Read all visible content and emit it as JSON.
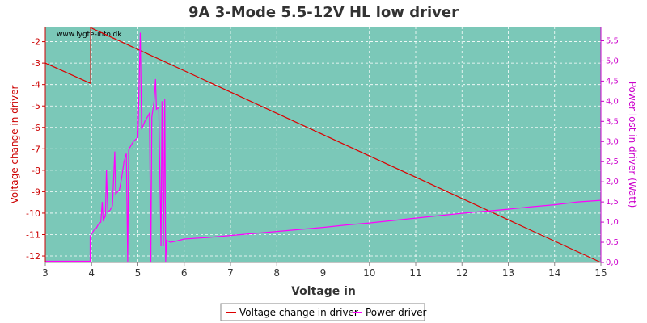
{
  "chart_data": {
    "type": "line",
    "title": "9A 3-Mode 5.5-12V HL low driver",
    "watermark": "www.lygte-info.dk",
    "xlabel": "Voltage in",
    "ylabel_left": "Voltage change in driver",
    "ylabel_right": "Power lost in driver (Watt)",
    "xlim": [
      3,
      15
    ],
    "ylim_left": [
      -12.3,
      -1.3
    ],
    "ylim_right": [
      0.0,
      5.85
    ],
    "x_ticks": [
      3,
      4,
      5,
      6,
      7,
      8,
      9,
      10,
      11,
      12,
      13,
      14,
      15
    ],
    "y_left_ticks": [
      -2,
      -3,
      -4,
      -5,
      -6,
      -7,
      -8,
      -9,
      -10,
      -11,
      -12
    ],
    "y_right_ticks": [
      "0,0",
      "0,5",
      "1,0",
      "1,5",
      "2,0",
      "2,5",
      "3,0",
      "3,5",
      "4,0",
      "4,5",
      "5,0",
      "5,5"
    ],
    "y_right_tick_values": [
      0.0,
      0.5,
      1.0,
      1.5,
      2.0,
      2.5,
      3.0,
      3.5,
      4.0,
      4.5,
      5.0,
      5.5
    ],
    "grid": true,
    "legend_position": "bottom",
    "colors": {
      "plot_bg": "#7bc8b8",
      "voltage_line": "#dd0000",
      "power_line": "#ff00ff",
      "left_axis": "#cc0000",
      "right_axis": "#cc00cc"
    },
    "series": [
      {
        "name": "Voltage change in driver",
        "axis": "left",
        "points": [
          [
            3.0,
            -3.0
          ],
          [
            3.98,
            -3.95
          ],
          [
            3.98,
            -1.35
          ],
          [
            15.0,
            -12.3
          ]
        ]
      },
      {
        "name": "Power driver",
        "axis": "right",
        "points": [
          [
            3.0,
            0.03
          ],
          [
            3.97,
            0.03
          ],
          [
            3.97,
            0.65
          ],
          [
            4.05,
            0.8
          ],
          [
            4.1,
            0.85
          ],
          [
            4.15,
            0.95
          ],
          [
            4.2,
            1.0
          ],
          [
            4.23,
            1.5
          ],
          [
            4.25,
            1.05
          ],
          [
            4.3,
            1.15
          ],
          [
            4.32,
            2.3
          ],
          [
            4.35,
            1.25
          ],
          [
            4.4,
            1.3
          ],
          [
            4.45,
            1.4
          ],
          [
            4.5,
            2.75
          ],
          [
            4.52,
            1.7
          ],
          [
            4.6,
            1.8
          ],
          [
            4.65,
            2.1
          ],
          [
            4.7,
            2.5
          ],
          [
            4.75,
            2.7
          ],
          [
            4.78,
            0.0
          ],
          [
            4.8,
            2.8
          ],
          [
            4.9,
            3.0
          ],
          [
            4.95,
            3.05
          ],
          [
            5.0,
            3.1
          ],
          [
            5.05,
            5.7
          ],
          [
            5.08,
            3.3
          ],
          [
            5.15,
            3.5
          ],
          [
            5.2,
            3.6
          ],
          [
            5.25,
            3.7
          ],
          [
            5.28,
            0.0
          ],
          [
            5.3,
            3.6
          ],
          [
            5.35,
            4.0
          ],
          [
            5.38,
            4.55
          ],
          [
            5.4,
            3.8
          ],
          [
            5.45,
            3.85
          ],
          [
            5.5,
            0.4
          ],
          [
            5.52,
            4.0
          ],
          [
            5.55,
            0.4
          ],
          [
            5.58,
            4.05
          ],
          [
            5.6,
            0.0
          ],
          [
            5.62,
            0.55
          ],
          [
            5.7,
            0.5
          ],
          [
            5.8,
            0.52
          ],
          [
            6.0,
            0.58
          ],
          [
            6.5,
            0.62
          ],
          [
            7.0,
            0.67
          ],
          [
            7.5,
            0.72
          ],
          [
            8.0,
            0.77
          ],
          [
            8.5,
            0.82
          ],
          [
            9.0,
            0.87
          ],
          [
            9.5,
            0.93
          ],
          [
            10.0,
            0.98
          ],
          [
            10.5,
            1.04
          ],
          [
            11.0,
            1.1
          ],
          [
            11.5,
            1.16
          ],
          [
            12.0,
            1.22
          ],
          [
            12.5,
            1.27
          ],
          [
            13.0,
            1.32
          ],
          [
            13.5,
            1.38
          ],
          [
            14.0,
            1.43
          ],
          [
            14.5,
            1.5
          ],
          [
            15.0,
            1.54
          ]
        ]
      }
    ]
  }
}
